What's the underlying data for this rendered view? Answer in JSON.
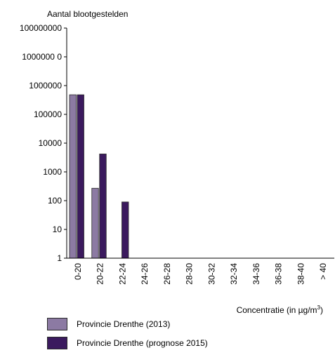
{
  "chart_data": {
    "type": "bar",
    "ylabel": "Aantal blootgestelden",
    "xlabel": "Concentratie (in µg/m",
    "xlabel_sup": "3",
    "xlabel_end": ")",
    "yscale": "log",
    "ylim": [
      1,
      100000000
    ],
    "yticks": [
      "1",
      "10",
      "100",
      "1000",
      "10000",
      "100000",
      "1000000",
      "1000000 0",
      "100000000"
    ],
    "categories": [
      "0-20",
      "20-22",
      "22-24",
      "24-26",
      "26-28",
      "28-30",
      "30-32",
      "32-34",
      "34-36",
      "36-38",
      "38-40",
      "> 40"
    ],
    "legend_position": "bottom",
    "series": [
      {
        "name": "Provincie Drenthe (2013)",
        "color": "#8c7aa3",
        "values": [
          480000,
          270,
          1,
          1,
          1,
          1,
          1,
          1,
          1,
          1,
          1,
          1
        ]
      },
      {
        "name": "Provincie Drenthe (prognose 2015)",
        "color": "#3b1a5e",
        "values": [
          480000,
          4200,
          90,
          1,
          1,
          1,
          1,
          1,
          1,
          1,
          1,
          1
        ]
      }
    ]
  }
}
